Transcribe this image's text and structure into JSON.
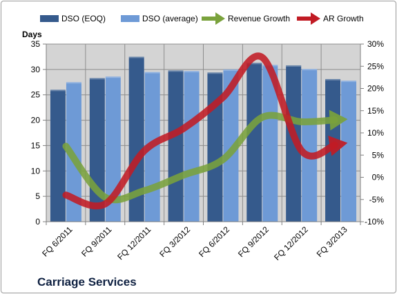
{
  "company_name": "Carriage Services",
  "colors": {
    "bar_eoq": "#355a8c",
    "bar_avg": "#6e9ad6",
    "revenue_arrow": "#7aa23c",
    "ar_arrow": "#c11b24",
    "plot_bg": "#d4d4d4",
    "grid": "#8c8c8c"
  },
  "chart_data": {
    "type": "bar",
    "categories": [
      "FQ 6/2011",
      "FQ 9/2011",
      "FQ 12/2011",
      "FQ 3/2012",
      "FQ 6/2012",
      "FQ 9/2012",
      "FQ 12/2012",
      "FQ 3/2013"
    ],
    "series": [
      {
        "name": "DSO (EOQ)",
        "type": "bar",
        "axis": "left",
        "values": [
          26.0,
          28.3,
          32.5,
          29.8,
          29.4,
          31.3,
          30.8,
          28.1
        ]
      },
      {
        "name": "DSO (average)",
        "type": "bar",
        "axis": "left",
        "values": [
          27.5,
          28.6,
          29.5,
          29.7,
          30.0,
          30.9,
          30.1,
          27.8
        ]
      },
      {
        "name": "Revenue Growth",
        "type": "line-arrow",
        "axis": "right",
        "values": [
          7,
          -4.5,
          -3,
          0.5,
          4,
          13.5,
          12.5,
          13
        ]
      },
      {
        "name": "AR Growth",
        "type": "line-arrow",
        "axis": "right",
        "values": [
          -4,
          -6,
          6,
          11,
          18,
          27,
          6,
          7.5
        ]
      }
    ],
    "ylabel": "Days",
    "ylim": [
      0,
      35
    ],
    "yticks": [
      "0",
      "5",
      "10",
      "15",
      "20",
      "25",
      "30",
      "35"
    ],
    "y2lim": [
      -10,
      30
    ],
    "y2ticks": [
      "-10%",
      "-5%",
      "0%",
      "5%",
      "10%",
      "15%",
      "20%",
      "25%",
      "30%"
    ],
    "legend_position": "top",
    "grid": true
  }
}
